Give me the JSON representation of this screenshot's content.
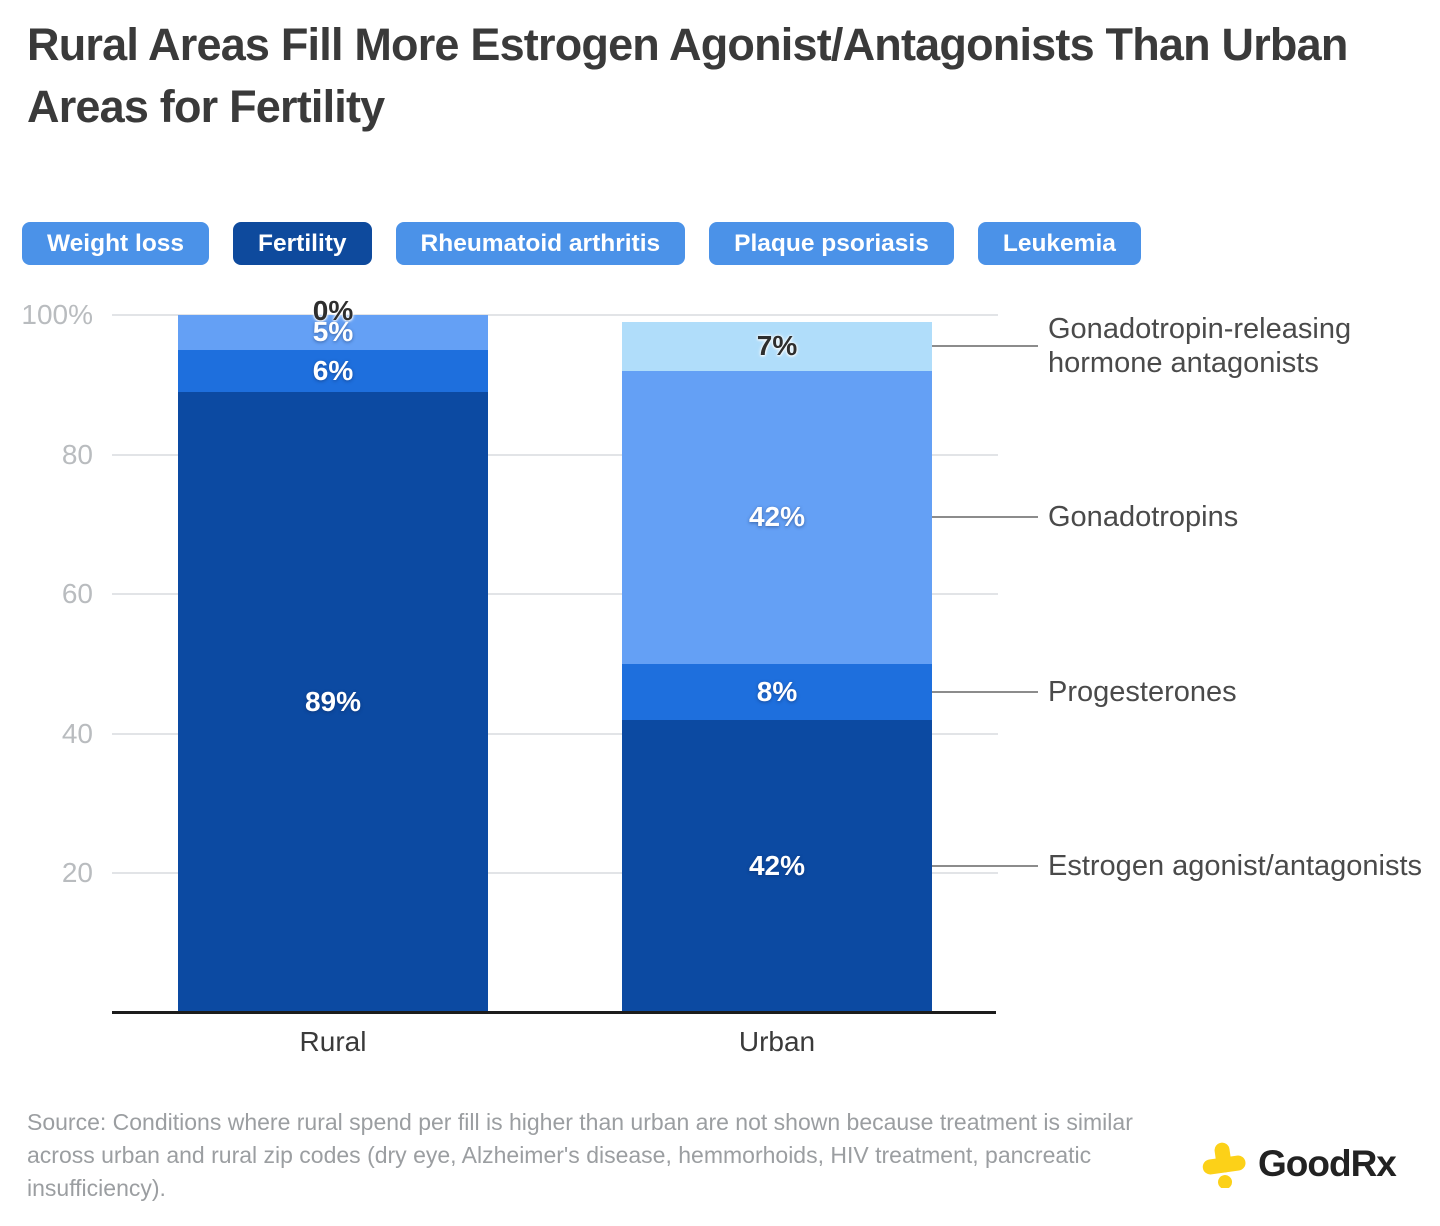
{
  "title": "Rural Areas Fill More Estrogen Agonist/Antagonists Than Urban Areas for Fertility",
  "tabs": [
    {
      "label": "Weight loss",
      "active": false
    },
    {
      "label": "Fertility",
      "active": true
    },
    {
      "label": "Rheumatoid arthritis",
      "active": false
    },
    {
      "label": "Plaque psoriasis",
      "active": false
    },
    {
      "label": "Leukemia",
      "active": false
    }
  ],
  "chart_data": {
    "type": "bar",
    "stacked": true,
    "orientation": "vertical",
    "categories": [
      "Rural",
      "Urban"
    ],
    "series_bottom_to_top": [
      {
        "name": "Estrogen agonist/antagonists",
        "color": "#0c4aa2",
        "values": [
          89,
          42
        ]
      },
      {
        "name": "Progesterones",
        "color": "#1e6fdd",
        "values": [
          6,
          8
        ]
      },
      {
        "name": "Gonadotropins",
        "color": "#64a0f5",
        "values": [
          5,
          42
        ]
      },
      {
        "name": "Gonadotropin-releasing hormone antagonists",
        "color": "#b0ddfa",
        "values": [
          0,
          7
        ]
      }
    ],
    "value_label_format": "{v}%",
    "ylim": [
      0,
      100
    ],
    "yticks": [
      {
        "value": 100,
        "label": "100%"
      },
      {
        "value": 80,
        "label": "80"
      },
      {
        "value": 60,
        "label": "60"
      },
      {
        "value": 40,
        "label": "40"
      },
      {
        "value": 20,
        "label": "20"
      }
    ],
    "grid": true,
    "legend_position": "right-leader-lines"
  },
  "source_note": "Source: Conditions where rural spend per fill is higher than urban are not shown because treatment is similar across urban and rural zip codes (dry eye, Alzheimer's disease, hemmorhoids, HIV treatment, pancreatic insufficiency).",
  "logo": {
    "wordmark": "GoodRx",
    "icon": "goodrx-cross-icon",
    "icon_color": "#fcd118",
    "text_color": "#222222"
  },
  "colors": {
    "tab_blue": "#4b92e8",
    "tab_active_blue": "#0e4a9d",
    "title_text": "#3a3a3a",
    "axis_tick_text": "#b9bcbf",
    "gridline": "#e2e4e7",
    "baseline": "#1c1c1c",
    "leader_line": "#8c8c8c",
    "legend_text": "#4a4a4a",
    "source_text": "#9b9ea1"
  }
}
